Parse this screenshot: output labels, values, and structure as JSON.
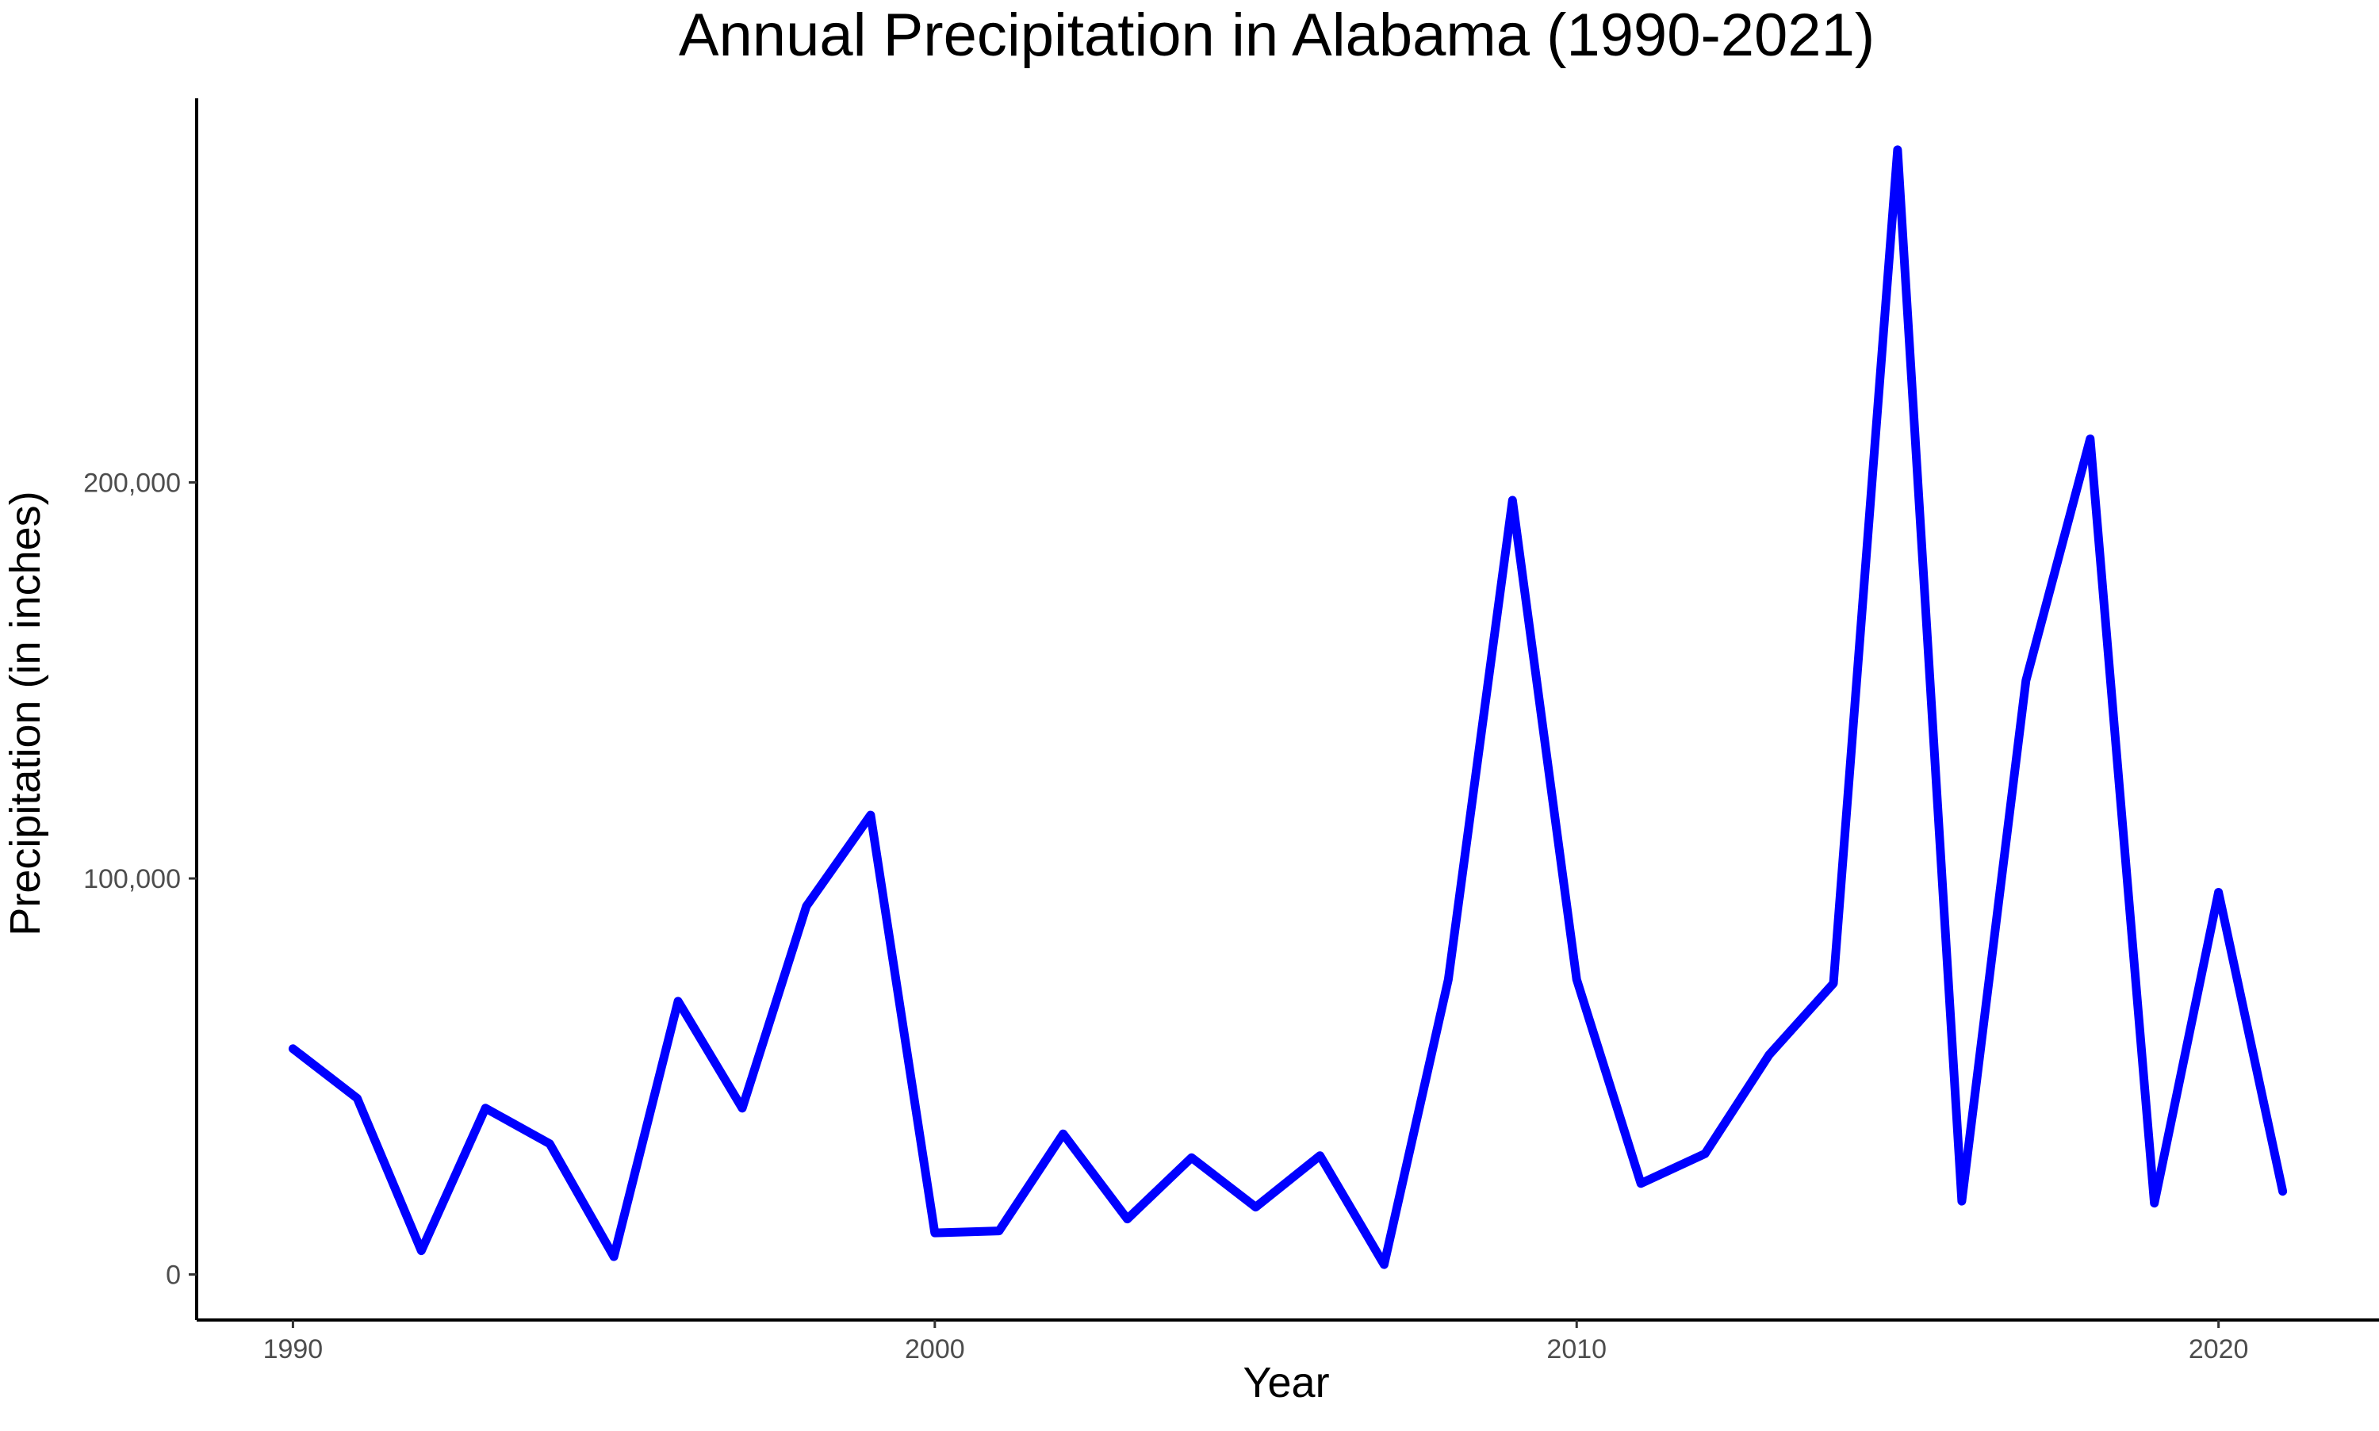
{
  "chart_data": {
    "type": "line",
    "title": "Annual Precipitation in Alabama (1990-2021)",
    "xlabel": "Year",
    "ylabel": "Precipitation (in inches)",
    "xlim": [
      1988.5,
      2022.5
    ],
    "ylim": [
      -11500,
      297000
    ],
    "x_ticks": [
      1990,
      2000,
      2010,
      2020
    ],
    "x_tick_labels": [
      "1990",
      "2000",
      "2010",
      "2020"
    ],
    "y_ticks": [
      0,
      100000,
      200000
    ],
    "y_tick_labels": [
      "0",
      "100,000",
      "200,000"
    ],
    "grid": false,
    "legend": "none",
    "line_color": "#0000ff",
    "series": [
      {
        "x": [
          1990,
          1991,
          1992,
          1993,
          1994,
          1995,
          1996,
          1997,
          1998,
          1999,
          2000,
          2001,
          2002,
          2003,
          2004,
          2005,
          2006,
          2007,
          2008,
          2009,
          2010,
          2011,
          2012,
          2013,
          2014,
          2015,
          2016,
          2017,
          2018,
          2019,
          2020,
          2021
        ],
        "values": [
          57000,
          44500,
          6000,
          42000,
          33000,
          4500,
          69000,
          42000,
          93000,
          116000,
          10500,
          11000,
          35500,
          14000,
          29500,
          17000,
          30000,
          2500,
          74500,
          195500,
          74500,
          23000,
          30500,
          55500,
          73500,
          284000,
          18500,
          150000,
          211000,
          18000,
          96500,
          21000
        ]
      }
    ]
  }
}
